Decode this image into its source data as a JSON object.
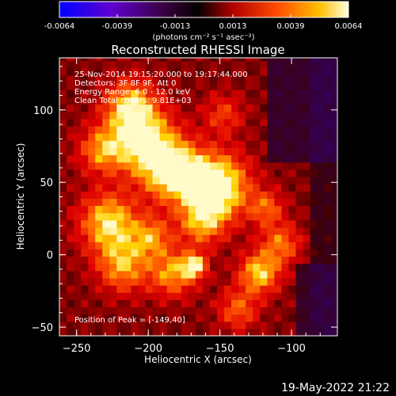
{
  "chart_data": {
    "type": "heatmap",
    "title": "Reconstructed RHESSI Image",
    "xlabel": "Heliocentric X (arcsec)",
    "ylabel": "Heliocentric Y (arcsec)",
    "xlim": [
      -262,
      -68
    ],
    "ylim": [
      -56,
      136
    ],
    "xticks": [
      -250,
      -200,
      -150,
      -100
    ],
    "yticks": [
      -50,
      0,
      50,
      100
    ],
    "colorbar": {
      "min": -0.0064,
      "max": 0.0064,
      "ticks": [
        "-0.0064",
        "-0.0039",
        "-0.0013",
        "0.0013",
        "0.0039",
        "0.0064"
      ],
      "label": "(photons cm⁻² s⁻¹ asec⁻²)",
      "colors": [
        "#0000ff",
        "#7000c0",
        "#3a003a",
        "#000000",
        "#c00000",
        "#ff5000",
        "#ffc000",
        "#ffffd0"
      ]
    },
    "annotations": [
      "25-Nov-2014 19:15:20.000 to 19:17:44.000",
      "Detectors: 3F 8F 9F, Att 0",
      "Energy Range: 6.0 - 12.0 keV",
      "Clean     Total counts: 9.81E+03"
    ],
    "peak_label": "Position of Peak = [-149,40]",
    "peak": [
      -149,
      40
    ]
  },
  "footer": {
    "timestamp": "19-May-2022 21:22"
  }
}
